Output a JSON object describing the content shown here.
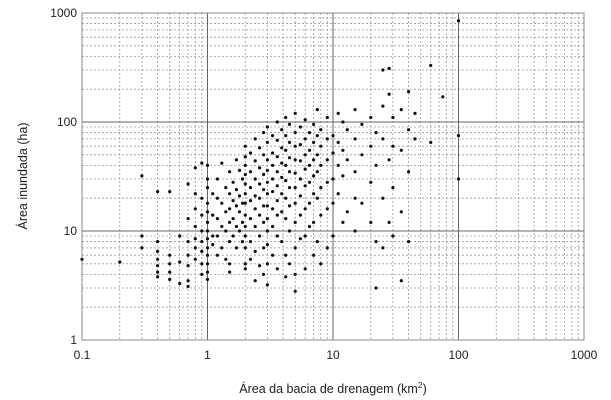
{
  "chart_data": {
    "type": "scatter",
    "xlabel": "Área da bacia de drenagem (km",
    "xlabel_sup": "2",
    "xlabel_end": ")",
    "ylabel": "Área inundada (ha)",
    "x_scale": "log",
    "y_scale": "log",
    "xlim": [
      0.1,
      1000
    ],
    "ylim": [
      1,
      1000
    ],
    "x_ticks": [
      "0.1",
      "1",
      "10",
      "100",
      "1000"
    ],
    "y_ticks": [
      "1",
      "10",
      "100",
      "1000"
    ],
    "grid": "major and minor, dashed minor lines",
    "marker_color": "#111111",
    "series": [
      {
        "points": [
          [
            0.1,
            5.5
          ],
          [
            0.2,
            5.2
          ],
          [
            0.3,
            32
          ],
          [
            0.3,
            9
          ],
          [
            0.3,
            7
          ],
          [
            0.4,
            23
          ],
          [
            0.4,
            8
          ],
          [
            0.4,
            6.5
          ],
          [
            0.4,
            5.5
          ],
          [
            0.4,
            4.8
          ],
          [
            0.4,
            4.2
          ],
          [
            0.4,
            3.8
          ],
          [
            0.5,
            23
          ],
          [
            0.5,
            6
          ],
          [
            0.5,
            5
          ],
          [
            0.5,
            4.2
          ],
          [
            0.5,
            3.6
          ],
          [
            0.6,
            9
          ],
          [
            0.6,
            5.2
          ],
          [
            0.6,
            3.3
          ],
          [
            0.7,
            27
          ],
          [
            0.7,
            13
          ],
          [
            0.7,
            8
          ],
          [
            0.7,
            6
          ],
          [
            0.7,
            4.8
          ],
          [
            0.7,
            3.5
          ],
          [
            0.7,
            3.1
          ],
          [
            0.8,
            38
          ],
          [
            0.8,
            22
          ],
          [
            0.8,
            16
          ],
          [
            0.8,
            11
          ],
          [
            0.8,
            8.5
          ],
          [
            0.8,
            7
          ],
          [
            0.8,
            5.5
          ],
          [
            0.9,
            42
          ],
          [
            0.9,
            20
          ],
          [
            0.9,
            14
          ],
          [
            0.9,
            10
          ],
          [
            0.9,
            8
          ],
          [
            0.9,
            6.5
          ],
          [
            0.9,
            5
          ],
          [
            0.9,
            4
          ],
          [
            1.0,
            40
          ],
          [
            1.0,
            30
          ],
          [
            1.0,
            25
          ],
          [
            1.0,
            18
          ],
          [
            1.0,
            15
          ],
          [
            1.0,
            12
          ],
          [
            1.0,
            10
          ],
          [
            1.0,
            8.5
          ],
          [
            1.0,
            7
          ],
          [
            1.0,
            6
          ],
          [
            1.0,
            5
          ],
          [
            1.0,
            4.2
          ],
          [
            1.0,
            3.6
          ],
          [
            1.1,
            22
          ],
          [
            1.1,
            14
          ],
          [
            1.1,
            9
          ],
          [
            1.1,
            7.5
          ],
          [
            1.2,
            30
          ],
          [
            1.2,
            20
          ],
          [
            1.2,
            13
          ],
          [
            1.2,
            9
          ],
          [
            1.2,
            6
          ],
          [
            1.3,
            42
          ],
          [
            1.3,
            18
          ],
          [
            1.3,
            11
          ],
          [
            1.3,
            7
          ],
          [
            1.4,
            25
          ],
          [
            1.4,
            15
          ],
          [
            1.4,
            10
          ],
          [
            1.4,
            5.5
          ],
          [
            1.5,
            35
          ],
          [
            1.5,
            22
          ],
          [
            1.5,
            16
          ],
          [
            1.5,
            12
          ],
          [
            1.5,
            8
          ],
          [
            1.5,
            5
          ],
          [
            1.5,
            4.2
          ],
          [
            1.6,
            28
          ],
          [
            1.6,
            19
          ],
          [
            1.6,
            13
          ],
          [
            1.6,
            9
          ],
          [
            1.7,
            45
          ],
          [
            1.7,
            24
          ],
          [
            1.7,
            17
          ],
          [
            1.7,
            11
          ],
          [
            1.7,
            7
          ],
          [
            1.8,
            36
          ],
          [
            1.8,
            21
          ],
          [
            1.8,
            15
          ],
          [
            1.8,
            10
          ],
          [
            1.9,
            30
          ],
          [
            1.9,
            18
          ],
          [
            1.9,
            12
          ],
          [
            1.9,
            8
          ],
          [
            2.0,
            60
          ],
          [
            2.0,
            48
          ],
          [
            2.0,
            40
          ],
          [
            2.0,
            33
          ],
          [
            2.0,
            27
          ],
          [
            2.0,
            22
          ],
          [
            2.0,
            18
          ],
          [
            2.0,
            14
          ],
          [
            2.0,
            11
          ],
          [
            2.0,
            9
          ],
          [
            2.0,
            7
          ],
          [
            2.0,
            5
          ],
          [
            2.0,
            4.5
          ],
          [
            2.2,
            52
          ],
          [
            2.2,
            35
          ],
          [
            2.2,
            25
          ],
          [
            2.2,
            19
          ],
          [
            2.2,
            13
          ],
          [
            2.2,
            8
          ],
          [
            2.2,
            5.5
          ],
          [
            2.4,
            70
          ],
          [
            2.4,
            44
          ],
          [
            2.4,
            30
          ],
          [
            2.4,
            21
          ],
          [
            2.4,
            16
          ],
          [
            2.4,
            11
          ],
          [
            2.4,
            6.5
          ],
          [
            2.4,
            3.5
          ],
          [
            2.6,
            58
          ],
          [
            2.6,
            38
          ],
          [
            2.6,
            27
          ],
          [
            2.6,
            20
          ],
          [
            2.6,
            14
          ],
          [
            2.6,
            9
          ],
          [
            2.6,
            4.8
          ],
          [
            2.8,
            80
          ],
          [
            2.8,
            50
          ],
          [
            2.8,
            33
          ],
          [
            2.8,
            24
          ],
          [
            2.8,
            17
          ],
          [
            2.8,
            12
          ],
          [
            2.8,
            7
          ],
          [
            2.8,
            4
          ],
          [
            3.0,
            90
          ],
          [
            3.0,
            65
          ],
          [
            3.0,
            45
          ],
          [
            3.0,
            36
          ],
          [
            3.0,
            28
          ],
          [
            3.0,
            22
          ],
          [
            3.0,
            17
          ],
          [
            3.0,
            13
          ],
          [
            3.0,
            10
          ],
          [
            3.0,
            7.5
          ],
          [
            3.0,
            5
          ],
          [
            3.0,
            3.2
          ],
          [
            3.3,
            75
          ],
          [
            3.3,
            52
          ],
          [
            3.3,
            40
          ],
          [
            3.3,
            30
          ],
          [
            3.3,
            23
          ],
          [
            3.3,
            16
          ],
          [
            3.3,
            11
          ],
          [
            3.3,
            6
          ],
          [
            3.6,
            100
          ],
          [
            3.6,
            68
          ],
          [
            3.6,
            48
          ],
          [
            3.6,
            35
          ],
          [
            3.6,
            26
          ],
          [
            3.6,
            19
          ],
          [
            3.6,
            14
          ],
          [
            3.6,
            9
          ],
          [
            3.6,
            4.5
          ],
          [
            3.9,
            85
          ],
          [
            3.9,
            58
          ],
          [
            3.9,
            42
          ],
          [
            3.9,
            31
          ],
          [
            3.9,
            22
          ],
          [
            3.9,
            15
          ],
          [
            3.9,
            8
          ],
          [
            4.2,
            110
          ],
          [
            4.2,
            75
          ],
          [
            4.2,
            55
          ],
          [
            4.2,
            40
          ],
          [
            4.2,
            29
          ],
          [
            4.2,
            20
          ],
          [
            4.2,
            13
          ],
          [
            4.2,
            6
          ],
          [
            4.2,
            3.8
          ],
          [
            4.5,
            95
          ],
          [
            4.5,
            65
          ],
          [
            4.5,
            47
          ],
          [
            4.5,
            35
          ],
          [
            4.5,
            25
          ],
          [
            4.5,
            17
          ],
          [
            4.5,
            10
          ],
          [
            4.5,
            5
          ],
          [
            5.0,
            120
          ],
          [
            5.0,
            80
          ],
          [
            5.0,
            60
          ],
          [
            5.0,
            45
          ],
          [
            5.0,
            34
          ],
          [
            5.0,
            25
          ],
          [
            5.0,
            18
          ],
          [
            5.0,
            12
          ],
          [
            5.0,
            7
          ],
          [
            5.0,
            4
          ],
          [
            5.0,
            2.8
          ],
          [
            5.5,
            90
          ],
          [
            5.5,
            62
          ],
          [
            5.5,
            44
          ],
          [
            5.5,
            30
          ],
          [
            5.5,
            21
          ],
          [
            5.5,
            14
          ],
          [
            5.5,
            8.5
          ],
          [
            6.0,
            105
          ],
          [
            6.0,
            70
          ],
          [
            6.0,
            50
          ],
          [
            6.0,
            37
          ],
          [
            6.0,
            26
          ],
          [
            6.0,
            16
          ],
          [
            6.0,
            9
          ],
          [
            6.0,
            4.5
          ],
          [
            6.5,
            80
          ],
          [
            6.5,
            55
          ],
          [
            6.5,
            40
          ],
          [
            6.5,
            28
          ],
          [
            6.5,
            18
          ],
          [
            6.5,
            11
          ],
          [
            7.0,
            95
          ],
          [
            7.0,
            65
          ],
          [
            7.0,
            45
          ],
          [
            7.0,
            32
          ],
          [
            7.0,
            22
          ],
          [
            7.0,
            12
          ],
          [
            7.0,
            6
          ],
          [
            7.5,
            130
          ],
          [
            7.5,
            75
          ],
          [
            7.5,
            50
          ],
          [
            7.5,
            35
          ],
          [
            7.5,
            20
          ],
          [
            7.5,
            8
          ],
          [
            8.0,
            85
          ],
          [
            8.0,
            60
          ],
          [
            8.0,
            40
          ],
          [
            8.0,
            25
          ],
          [
            8.0,
            14
          ],
          [
            8.0,
            5
          ],
          [
            9.0,
            110
          ],
          [
            9.0,
            70
          ],
          [
            9.0,
            45
          ],
          [
            9.0,
            28
          ],
          [
            9.0,
            16
          ],
          [
            9.0,
            7
          ],
          [
            10,
            75
          ],
          [
            10,
            52
          ],
          [
            10,
            30
          ],
          [
            10,
            18
          ],
          [
            10,
            9
          ],
          [
            11,
            120
          ],
          [
            11,
            65
          ],
          [
            11,
            40
          ],
          [
            11,
            22
          ],
          [
            12,
            100
          ],
          [
            12,
            55
          ],
          [
            12,
            32
          ],
          [
            12,
            12
          ],
          [
            13,
            85
          ],
          [
            13,
            45
          ],
          [
            13,
            15
          ],
          [
            15,
            130
          ],
          [
            15,
            70
          ],
          [
            15,
            35
          ],
          [
            15,
            20
          ],
          [
            15,
            10
          ],
          [
            17,
            95
          ],
          [
            17,
            50
          ],
          [
            17,
            18
          ],
          [
            20,
            110
          ],
          [
            20,
            60
          ],
          [
            20,
            28
          ],
          [
            20,
            12
          ],
          [
            22,
            80
          ],
          [
            22,
            40
          ],
          [
            22,
            8
          ],
          [
            22,
            3
          ],
          [
            25,
            300
          ],
          [
            25,
            140
          ],
          [
            25,
            70
          ],
          [
            25,
            20
          ],
          [
            25,
            7
          ],
          [
            28,
            310
          ],
          [
            28,
            180
          ],
          [
            28,
            45
          ],
          [
            28,
            12
          ],
          [
            30,
            110
          ],
          [
            30,
            60
          ],
          [
            30,
            25
          ],
          [
            30,
            9
          ],
          [
            35,
            130
          ],
          [
            35,
            55
          ],
          [
            35,
            15
          ],
          [
            35,
            3.5
          ],
          [
            40,
            190
          ],
          [
            40,
            85
          ],
          [
            40,
            35
          ],
          [
            40,
            8
          ],
          [
            45,
            120
          ],
          [
            45,
            70
          ],
          [
            60,
            330
          ],
          [
            60,
            65
          ],
          [
            75,
            170
          ],
          [
            100,
            850
          ],
          [
            100,
            75
          ],
          [
            100,
            30
          ]
        ]
      }
    ]
  }
}
